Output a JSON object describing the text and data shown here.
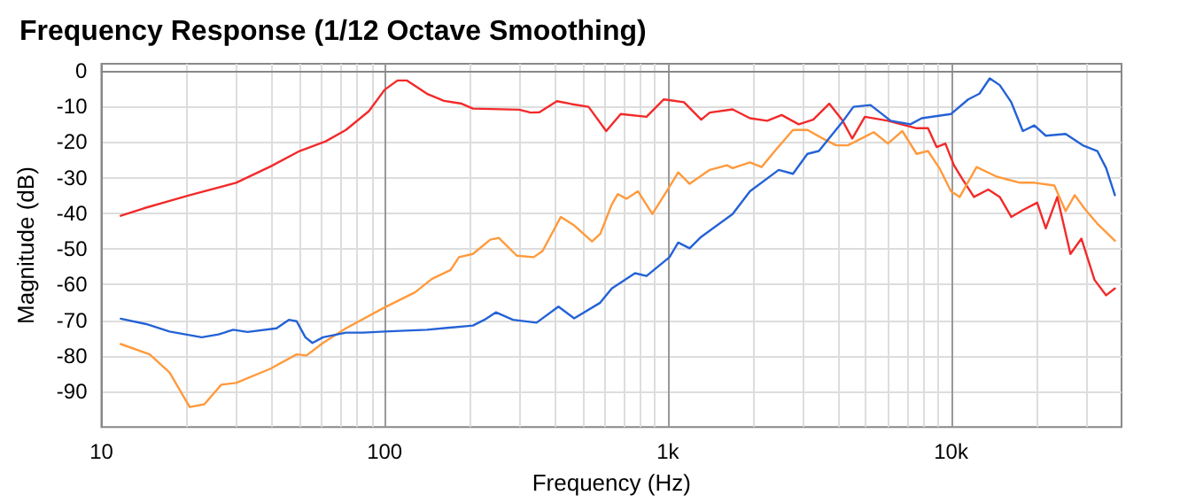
{
  "chart_data": {
    "type": "line",
    "title": "Frequency Response (1/12 Octave Smoothing)",
    "xlabel": "Frequency (Hz)",
    "ylabel": "Magnitude (dB)",
    "log": "x",
    "grid": true,
    "marker": "none",
    "line_style": "solid",
    "xlim": [
      10,
      40000
    ],
    "xticks": [
      10,
      100,
      {
        "value": 1000,
        "label": "1k"
      },
      {
        "value": 10000,
        "label": "10k"
      }
    ],
    "ylim": [
      -100,
      2
    ],
    "yticks": [
      0,
      -10,
      -20,
      -30,
      -40,
      -50,
      -60,
      -70,
      -80,
      -90
    ],
    "series": [
      {
        "color": "#f22a2a",
        "x": [
          11.7,
          14.1,
          17.4,
          20.5,
          29.9,
          39.6,
          50.1,
          61.9,
          73,
          88,
          100,
          111,
          120,
          141,
          162,
          187,
          205,
          299,
          328,
          352,
          406,
          456,
          525,
          606,
          682,
          841,
          968,
          1140,
          1312,
          1406,
          1693,
          1950,
          2244,
          2523,
          2899,
          3260,
          3715,
          4120,
          4480,
          4963,
          5986,
          7557,
          8293,
          8895,
          9550,
          10240,
          10990,
          12050,
          13540,
          14860,
          16320,
          17930,
          20150,
          21610,
          23730,
          26400,
          28860,
          32120,
          35300,
          37900
        ],
        "values": [
          -40.7,
          -38.6,
          -36.5,
          -34.9,
          -31.4,
          -26.8,
          -22.5,
          -19.8,
          -16.6,
          -11.3,
          -5.3,
          -2.7,
          -2.7,
          -6.4,
          -8.4,
          -9.2,
          -10.6,
          -10.9,
          -11.7,
          -11.6,
          -8.5,
          -9.3,
          -10.1,
          -16.9,
          -12.1,
          -12.9,
          -8,
          -8.8,
          -13.7,
          -11.7,
          -10.8,
          -13.3,
          -14,
          -12.4,
          -15,
          -13.7,
          -9.2,
          -13.7,
          -19,
          -12.9,
          -14,
          -16.1,
          -16.1,
          -21.4,
          -20.4,
          -26.5,
          -30.5,
          -35.4,
          -33.3,
          -35.4,
          -41,
          -39.1,
          -37,
          -44.2,
          -35.4,
          -51.4,
          -47.1,
          -58.7,
          -63,
          -61.1
        ]
      },
      {
        "color": "#ff9a3c",
        "x": [
          11.7,
          14.8,
          17.4,
          20.5,
          23.1,
          26.5,
          29.9,
          39.6,
          48.9,
          53,
          60.6,
          73,
          100,
          128,
          147,
          171,
          183,
          205,
          236,
          253,
          293,
          336,
          361,
          419,
          467,
          540,
          577,
          634,
          666,
          714,
          784,
          882,
          991,
          1088,
          1194,
          1406,
          1618,
          1693,
          1950,
          2143,
          2405,
          2767,
          3111,
          3581,
          3933,
          4321,
          4743,
          5334,
          5986,
          6730,
          7557,
          8293,
          9097,
          10000,
          10730,
          12310,
          14500,
          17520,
          19680,
          23170,
          25390,
          27330,
          29900,
          32850,
          37900
        ],
        "values": [
          -76.7,
          -79.6,
          -84.7,
          -94.4,
          -93.6,
          -88.1,
          -87.6,
          -83.6,
          -79.6,
          -79.9,
          -76.4,
          -72.3,
          -66.4,
          -62.2,
          -58.4,
          -55.9,
          -52.3,
          -51.4,
          -47.4,
          -46.9,
          -51.9,
          -52.3,
          -50.6,
          -41,
          -43.4,
          -47.9,
          -45.8,
          -37.5,
          -34.6,
          -35.9,
          -33.8,
          -40.2,
          -33.8,
          -28.5,
          -31.7,
          -27.8,
          -26.5,
          -27.3,
          -25.7,
          -27,
          -22.2,
          -16.6,
          -16.6,
          -19.3,
          -20.9,
          -20.9,
          -19.3,
          -17.2,
          -20.4,
          -16.9,
          -23.3,
          -22.5,
          -27.3,
          -33.8,
          -35.4,
          -27,
          -29.7,
          -31.4,
          -31.4,
          -32.2,
          -39.4,
          -34.9,
          -39.1,
          -42.9,
          -47.7
        ]
      },
      {
        "color": "#2462d6",
        "x": [
          11.7,
          14.4,
          17.4,
          22.6,
          25.9,
          29.2,
          32.8,
          41.5,
          45.9,
          48.9,
          52.5,
          55.6,
          60.6,
          73,
          84,
          100,
          141,
          205,
          225,
          247,
          284,
          344,
          411,
          467,
          577,
          634,
          766,
          841,
          1014,
          1088,
          1194,
          1312,
          1693,
          1950,
          2463,
          2767,
          3111,
          3415,
          3748,
          4120,
          4522,
          5197,
          6123,
          7189,
          7880,
          10000,
          11500,
          12600,
          13700,
          14860,
          16320,
          17930,
          19680,
          21610,
          25390,
          29180,
          32850,
          35300,
          37900
        ],
        "values": [
          -69.6,
          -71.1,
          -73.2,
          -74.8,
          -74,
          -72.7,
          -73.3,
          -72.3,
          -69.9,
          -70.3,
          -74.8,
          -76.4,
          -74.8,
          -73.5,
          -73.5,
          -73.2,
          -72.7,
          -71.5,
          -69.9,
          -67.8,
          -69.9,
          -70.7,
          -66.2,
          -69.5,
          -65.1,
          -61.1,
          -56.8,
          -57.6,
          -52.3,
          -48.2,
          -49.8,
          -46.6,
          -40.2,
          -33.8,
          -27.8,
          -28.9,
          -23.3,
          -22.5,
          -18.5,
          -14.5,
          -10.1,
          -9.6,
          -14,
          -15,
          -13.3,
          -12.1,
          -8,
          -6.4,
          -2.1,
          -4,
          -8.8,
          -16.9,
          -15.3,
          -18.2,
          -17.7,
          -20.9,
          -22.5,
          -27.3,
          -34.9
        ]
      }
    ]
  }
}
